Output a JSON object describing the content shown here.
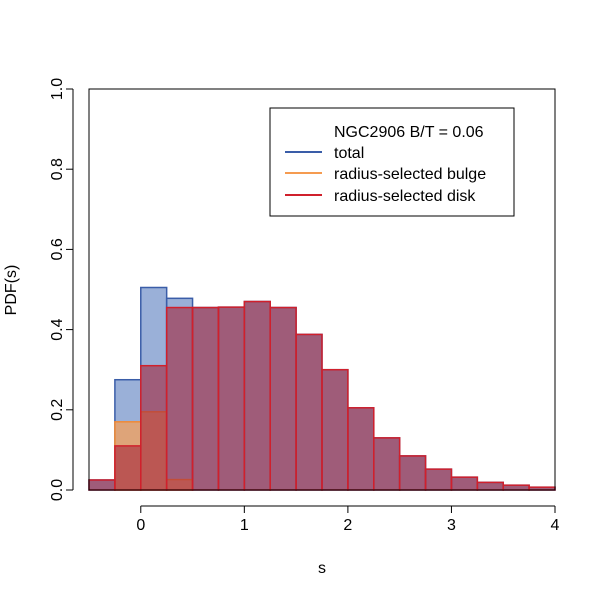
{
  "chart_data": {
    "type": "histogram",
    "title": "",
    "xlabel": "s",
    "ylabel": "PDF(s)",
    "xlim": [
      -0.5,
      4.0
    ],
    "ylim": [
      0.0,
      1.0
    ],
    "xticks": [
      0,
      1,
      2,
      3,
      4
    ],
    "xtick_labels": [
      "0",
      "1",
      "2",
      "3",
      "4"
    ],
    "yticks": [
      0.0,
      0.2,
      0.4,
      0.6,
      0.8,
      1.0
    ],
    "ytick_labels": [
      "0.0",
      "0.2",
      "0.4",
      "0.6",
      "0.8",
      "1.0"
    ],
    "bin_edges": [
      -0.5,
      -0.25,
      0.0,
      0.25,
      0.5,
      0.75,
      1.0,
      1.25,
      1.5,
      1.75,
      2.0,
      2.25,
      2.5,
      2.75,
      3.0,
      3.25,
      3.5,
      3.75,
      4.0
    ],
    "series": [
      {
        "name": "total",
        "fill": "#6F8FC8",
        "fill_opacity": 0.7,
        "stroke": "#3A5DA8",
        "values": [
          0.025,
          0.275,
          0.505,
          0.478,
          0.455,
          0.456,
          0.47,
          0.455,
          0.388,
          0.3,
          0.205,
          0.13,
          0.085,
          0.052,
          0.032,
          0.019,
          0.012,
          0.007
        ]
      },
      {
        "name": "radius-selected bulge",
        "fill": "#F4A05A",
        "fill_opacity": 0.75,
        "stroke": "#F08A35",
        "values": [
          0.0,
          0.17,
          0.195,
          0.026,
          0.0,
          0.0,
          0.0,
          0.0,
          0.0,
          0.0,
          0.0,
          0.0,
          0.0,
          0.0,
          0.0,
          0.0,
          0.0,
          0.0
        ]
      },
      {
        "name": "radius-selected disk",
        "fill": "#A3253A",
        "fill_opacity": 0.6,
        "stroke": "#D0202C",
        "values": [
          0.025,
          0.11,
          0.31,
          0.455,
          0.455,
          0.456,
          0.47,
          0.455,
          0.388,
          0.3,
          0.205,
          0.13,
          0.085,
          0.052,
          0.032,
          0.019,
          0.012,
          0.007
        ]
      }
    ],
    "legend": {
      "placement": "top-right",
      "title": "NGC2906 B/T = 0.06",
      "entries": [
        {
          "label": "total",
          "color": "#3A5DA8"
        },
        {
          "label": "radius-selected bulge",
          "color": "#F59B50"
        },
        {
          "label": "radius-selected disk",
          "color": "#D0202C"
        }
      ]
    }
  }
}
